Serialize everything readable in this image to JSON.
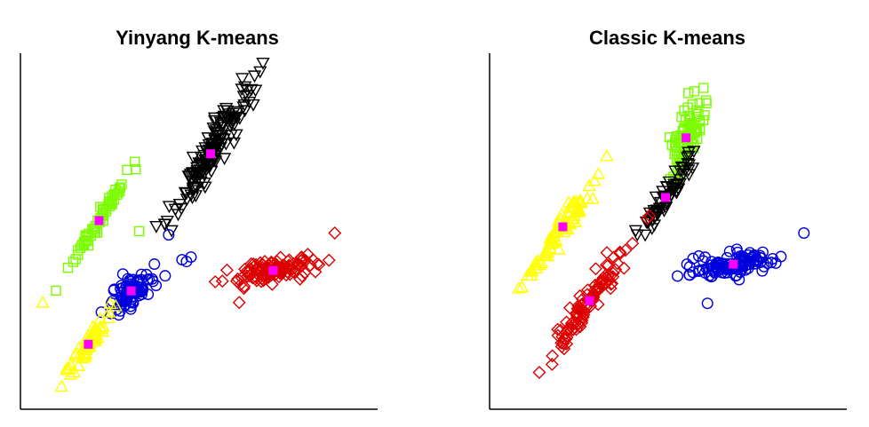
{
  "chart_data": [
    {
      "type": "scatter",
      "title": "Yinyang K-means",
      "xlabel": "",
      "ylabel": "",
      "grid": false,
      "xlim": [
        0,
        400
      ],
      "ylim": [
        0,
        400
      ],
      "legend": "none",
      "clusters": [
        {
          "marker": "square",
          "color": "#7CFC00",
          "centroid": [
            88,
            212
          ],
          "spread_along": 75,
          "spread_across": 5,
          "angle": 57,
          "count": 60,
          "extra_points": [
            [
              133,
              200
            ],
            [
              128,
              278
            ]
          ]
        },
        {
          "marker": "triangle-down",
          "color": "#000000",
          "centroid": [
            213,
            287
          ],
          "spread_along": 95,
          "spread_across": 14,
          "angle": 58,
          "count": 150
        },
        {
          "marker": "circle",
          "color": "#0000DD",
          "centroid": [
            124,
            133
          ],
          "spread_along": 40,
          "spread_across": 14,
          "angle": 40,
          "count": 90,
          "extra_points": [
            [
              166,
              196
            ],
            [
              186,
              166
            ],
            [
              181,
              168
            ],
            [
              191,
              171
            ]
          ]
        },
        {
          "marker": "triangle-up",
          "color": "#FFFF00",
          "centroid": [
            76,
            73
          ],
          "spread_along": 50,
          "spread_across": 7,
          "angle": 57,
          "count": 55,
          "extra_points": [
            [
              25,
              120
            ],
            [
              56,
              39
            ]
          ]
        },
        {
          "marker": "diamond",
          "color": "#DD0000",
          "centroid": [
            283,
            156
          ],
          "spread_along": 55,
          "spread_across": 12,
          "angle": 10,
          "count": 120,
          "extra_points": [
            [
              352,
              198
            ],
            [
              245,
              120
            ]
          ]
        }
      ],
      "centroid_color": "#FF00FF"
    },
    {
      "type": "scatter",
      "title": "Classic K-means",
      "xlabel": "",
      "ylabel": "",
      "grid": false,
      "xlim": [
        0,
        400
      ],
      "ylim": [
        0,
        400
      ],
      "legend": "none",
      "clusters": [
        {
          "marker": "square",
          "color": "#7CFC00",
          "centroid": [
            220,
            305
          ],
          "spread_along": 55,
          "spread_across": 14,
          "angle": 70,
          "count": 90
        },
        {
          "marker": "triangle-down",
          "color": "#000000",
          "centroid": [
            197,
            238
          ],
          "spread_along": 55,
          "spread_across": 9,
          "angle": 58,
          "count": 70
        },
        {
          "marker": "circle",
          "color": "#0000DD",
          "centroid": [
            273,
            163
          ],
          "spread_along": 50,
          "spread_across": 11,
          "angle": 8,
          "count": 120,
          "extra_points": [
            [
              352,
              198
            ],
            [
              244,
              119
            ]
          ]
        },
        {
          "marker": "triangle-up",
          "color": "#FFFF00",
          "centroid": [
            82,
            205
          ],
          "spread_along": 80,
          "spread_across": 8,
          "angle": 55,
          "count": 80
        },
        {
          "marker": "diamond",
          "color": "#DD0000",
          "centroid": [
            112,
            122
          ],
          "spread_along": 85,
          "spread_across": 11,
          "angle": 57,
          "count": 110
        }
      ],
      "centroid_color": "#FF00FF"
    }
  ]
}
